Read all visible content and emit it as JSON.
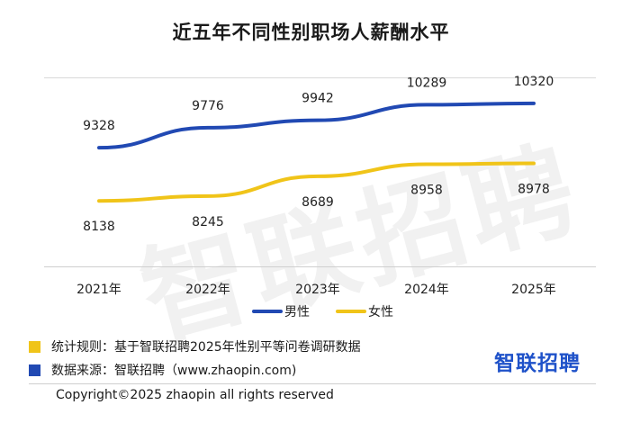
{
  "title": "近五年不同性别职场人薪酬水平",
  "watermark": "智联招聘",
  "chart_data": {
    "type": "line",
    "categories": [
      "2021年",
      "2022年",
      "2023年",
      "2024年",
      "2025年"
    ],
    "series": [
      {
        "name": "男性",
        "color": "#2149b3",
        "values": [
          9328,
          9776,
          9942,
          10289,
          10320
        ]
      },
      {
        "name": "女性",
        "color": "#f0c419",
        "values": [
          8138,
          8245,
          8689,
          8958,
          8978
        ]
      }
    ],
    "legend_position": "bottom"
  },
  "footer": {
    "rule_label": "统计规则：基于智联招聘2025年性别平等问卷调研数据",
    "rule_color": "#f0c419",
    "source_label": "数据来源：智联招聘（www.zhaopin.com)",
    "source_color": "#2149b3",
    "logo": "智联招聘",
    "copyright": "Copyright©2025 zhaopin all rights reserved"
  }
}
